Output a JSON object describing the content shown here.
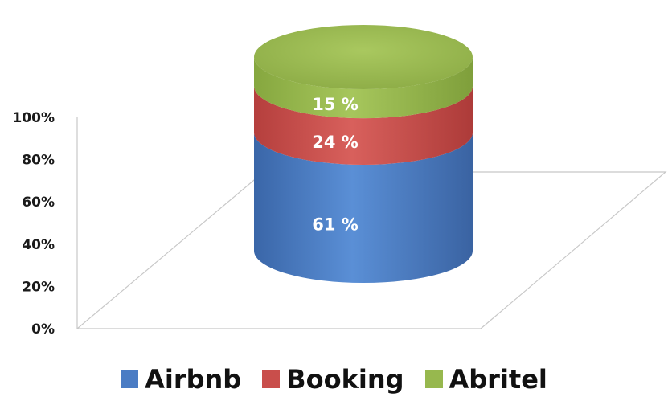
{
  "chart_data": {
    "type": "bar",
    "stacked": true,
    "percent": true,
    "three_d": true,
    "shape": "cylinder",
    "categories": [
      ""
    ],
    "series": [
      {
        "name": "Airbnb",
        "values": [
          61
        ],
        "label": "61 %",
        "color": "#4a7cc4"
      },
      {
        "name": "Booking",
        "values": [
          24
        ],
        "label": "24 %",
        "color": "#c94e4b"
      },
      {
        "name": "Abritel",
        "values": [
          15
        ],
        "label": "15 %",
        "color": "#97b84e"
      }
    ],
    "y_ticks": [
      "0%",
      "20%",
      "40%",
      "60%",
      "80%",
      "100%"
    ],
    "ylim": [
      0,
      100
    ],
    "grid": false,
    "legend_position": "bottom"
  }
}
